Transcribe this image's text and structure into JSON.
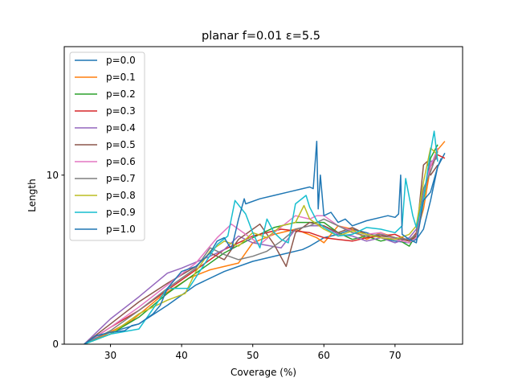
{
  "chart_data": {
    "type": "line",
    "title": "planar f=0.01 ε=5.5",
    "xlabel": "Coverage (%)",
    "ylabel": "Length",
    "xlim": [
      23.5,
      79.5
    ],
    "ylim": [
      0,
      17.6
    ],
    "x_ticks": [
      30,
      40,
      50,
      60,
      70
    ],
    "y_ticks": [
      0,
      10
    ],
    "grid": false,
    "legend_position": "top-left",
    "series": [
      {
        "name": "p=0.0",
        "color": "#1f77b4",
        "points": [
          [
            26.3,
            0
          ],
          [
            28,
            0.5
          ],
          [
            30,
            0.7
          ],
          [
            34,
            1.2
          ],
          [
            38,
            2.3
          ],
          [
            42,
            3.5
          ],
          [
            46,
            4.3
          ],
          [
            50,
            4.9
          ],
          [
            54,
            5.3
          ],
          [
            57,
            5.6
          ],
          [
            58,
            5.8
          ],
          [
            60,
            6.3
          ],
          [
            62,
            6.5
          ],
          [
            64,
            6.8
          ],
          [
            66,
            6.6
          ],
          [
            68,
            6.3
          ],
          [
            70,
            6.1
          ],
          [
            72,
            6.0
          ],
          [
            73,
            6.2
          ],
          [
            74,
            6.8
          ],
          [
            75,
            8.5
          ],
          [
            76,
            10.5
          ],
          [
            77,
            11.3
          ]
        ]
      },
      {
        "name": "p=0.1",
        "color": "#ff7f0e",
        "points": [
          [
            26.3,
            0
          ],
          [
            29,
            0.5
          ],
          [
            33,
            1.4
          ],
          [
            37,
            2.8
          ],
          [
            41,
            3.9
          ],
          [
            44,
            4.4
          ],
          [
            48,
            4.8
          ],
          [
            50,
            6.0
          ],
          [
            53,
            6.5
          ],
          [
            56,
            6.8
          ],
          [
            59,
            6.3
          ],
          [
            60,
            6.0
          ],
          [
            62,
            7.0
          ],
          [
            64,
            6.8
          ],
          [
            66,
            6.2
          ],
          [
            68,
            6.6
          ],
          [
            70,
            6.3
          ],
          [
            72,
            6.1
          ],
          [
            73,
            6.5
          ],
          [
            74,
            8.0
          ],
          [
            75,
            10.5
          ],
          [
            76,
            11.5
          ],
          [
            77,
            12.0
          ]
        ]
      },
      {
        "name": "p=0.2",
        "color": "#2ca02c",
        "points": [
          [
            26.3,
            0
          ],
          [
            30,
            0.6
          ],
          [
            34,
            1.6
          ],
          [
            38,
            3.0
          ],
          [
            42,
            4.2
          ],
          [
            46,
            5.4
          ],
          [
            50,
            6.3
          ],
          [
            53,
            6.9
          ],
          [
            56,
            7.2
          ],
          [
            60,
            7.2
          ],
          [
            62,
            6.6
          ],
          [
            64,
            6.2
          ],
          [
            66,
            6.4
          ],
          [
            68,
            6.1
          ],
          [
            70,
            6.3
          ],
          [
            72,
            5.8
          ],
          [
            73,
            6.5
          ],
          [
            74,
            8.5
          ],
          [
            75,
            11.0
          ],
          [
            76,
            11.8
          ]
        ]
      },
      {
        "name": "p=0.3",
        "color": "#d62728",
        "points": [
          [
            26.3,
            0
          ],
          [
            30,
            1.0
          ],
          [
            34,
            2.0
          ],
          [
            38,
            3.2
          ],
          [
            42,
            4.4
          ],
          [
            46,
            5.6
          ],
          [
            50,
            6.4
          ],
          [
            54,
            6.8
          ],
          [
            58,
            6.6
          ],
          [
            60,
            6.3
          ],
          [
            62,
            6.2
          ],
          [
            64,
            6.1
          ],
          [
            66,
            6.3
          ],
          [
            68,
            6.4
          ],
          [
            70,
            6.5
          ],
          [
            72,
            6.1
          ],
          [
            73,
            6.6
          ],
          [
            74,
            8.8
          ],
          [
            75,
            10.5
          ],
          [
            76,
            11.2
          ],
          [
            77,
            11.0
          ]
        ]
      },
      {
        "name": "p=0.4",
        "color": "#9467bd",
        "points": [
          [
            26.3,
            0
          ],
          [
            30,
            1.5
          ],
          [
            34,
            2.8
          ],
          [
            38,
            4.2
          ],
          [
            40,
            4.5
          ],
          [
            44,
            5.2
          ],
          [
            46,
            5.6
          ],
          [
            48,
            6.4
          ],
          [
            50,
            6.0
          ],
          [
            54,
            5.7
          ],
          [
            56,
            6.8
          ],
          [
            58,
            7.0
          ],
          [
            60,
            7.0
          ],
          [
            62,
            6.5
          ],
          [
            64,
            6.4
          ],
          [
            66,
            6.1
          ],
          [
            68,
            6.3
          ],
          [
            70,
            6.0
          ],
          [
            72,
            6.3
          ],
          [
            73,
            6.8
          ],
          [
            74,
            8.8
          ],
          [
            75,
            10.8
          ],
          [
            76,
            11.0
          ]
        ]
      },
      {
        "name": "p=0.5",
        "color": "#8c564b",
        "points": [
          [
            26.3,
            0
          ],
          [
            30,
            1.2
          ],
          [
            34,
            2.5
          ],
          [
            38,
            3.6
          ],
          [
            42,
            4.6
          ],
          [
            44,
            5.4
          ],
          [
            46,
            5.0
          ],
          [
            48,
            6.2
          ],
          [
            50,
            6.8
          ],
          [
            51,
            7.1
          ],
          [
            53,
            5.9
          ],
          [
            54.7,
            4.6
          ],
          [
            56,
            6.6
          ],
          [
            58,
            7.2
          ],
          [
            60,
            7.0
          ],
          [
            62,
            6.6
          ],
          [
            64,
            6.9
          ],
          [
            66,
            6.5
          ],
          [
            68,
            6.4
          ],
          [
            70,
            6.3
          ],
          [
            72,
            6.1
          ],
          [
            73,
            6.4
          ],
          [
            74,
            10.6
          ],
          [
            74.5,
            10.8
          ],
          [
            75,
            10.0
          ],
          [
            76,
            10.6
          ]
        ]
      },
      {
        "name": "p=0.6",
        "color": "#e377c2",
        "points": [
          [
            26.3,
            0
          ],
          [
            30,
            1.0
          ],
          [
            34,
            2.2
          ],
          [
            38,
            3.5
          ],
          [
            42,
            4.8
          ],
          [
            45,
            6.3
          ],
          [
            47,
            7.1
          ],
          [
            49,
            6.5
          ],
          [
            51,
            5.9
          ],
          [
            53,
            6.6
          ],
          [
            56,
            7.6
          ],
          [
            58,
            7.4
          ],
          [
            59,
            7.6
          ],
          [
            60,
            7.6
          ],
          [
            62,
            7.0
          ],
          [
            64,
            6.7
          ],
          [
            66,
            6.5
          ],
          [
            68,
            6.6
          ],
          [
            70,
            6.2
          ],
          [
            72,
            6.0
          ],
          [
            73,
            6.3
          ],
          [
            74,
            9.0
          ],
          [
            75,
            10.5
          ],
          [
            76,
            11.6
          ]
        ]
      },
      {
        "name": "p=0.7",
        "color": "#7f7f7f",
        "points": [
          [
            26.3,
            0
          ],
          [
            30,
            0.8
          ],
          [
            34,
            2.0
          ],
          [
            38,
            3.3
          ],
          [
            42,
            4.5
          ],
          [
            44,
            5.7
          ],
          [
            46,
            5.3
          ],
          [
            48,
            5.0
          ],
          [
            50,
            5.2
          ],
          [
            52,
            5.5
          ],
          [
            54,
            6.1
          ],
          [
            56,
            6.8
          ],
          [
            58,
            7.0
          ],
          [
            60,
            7.4
          ],
          [
            62,
            7.0
          ],
          [
            64,
            6.6
          ],
          [
            66,
            6.4
          ],
          [
            68,
            6.5
          ],
          [
            70,
            6.3
          ],
          [
            72,
            6.2
          ],
          [
            73,
            6.5
          ],
          [
            74,
            9.2
          ],
          [
            75,
            10.2
          ],
          [
            76,
            11.4
          ]
        ]
      },
      {
        "name": "p=0.8",
        "color": "#bcbd22",
        "points": [
          [
            26.3,
            0
          ],
          [
            30,
            0.6
          ],
          [
            34,
            1.8
          ],
          [
            38,
            2.6
          ],
          [
            40.5,
            3.0
          ],
          [
            42,
            4.3
          ],
          [
            44,
            5.5
          ],
          [
            46,
            6.1
          ],
          [
            48,
            5.8
          ],
          [
            50,
            6.6
          ],
          [
            52,
            6.3
          ],
          [
            54,
            7.0
          ],
          [
            56,
            7.2
          ],
          [
            57.2,
            8.2
          ],
          [
            58,
            7.4
          ],
          [
            60,
            6.8
          ],
          [
            62,
            6.4
          ],
          [
            64,
            6.7
          ],
          [
            66,
            6.5
          ],
          [
            68,
            6.3
          ],
          [
            70,
            6.2
          ],
          [
            72,
            6.5
          ],
          [
            73,
            7.0
          ],
          [
            74,
            9.6
          ],
          [
            75,
            11.6
          ],
          [
            76,
            11.2
          ]
        ]
      },
      {
        "name": "p=0.9",
        "color": "#17becf",
        "points": [
          [
            26.3,
            0
          ],
          [
            30,
            0.6
          ],
          [
            34,
            0.9
          ],
          [
            38,
            3.3
          ],
          [
            41,
            3.3
          ],
          [
            43,
            4.6
          ],
          [
            45,
            5.9
          ],
          [
            46.5,
            6.4
          ],
          [
            47.5,
            8.5
          ],
          [
            49,
            7.7
          ],
          [
            50,
            6.6
          ],
          [
            51,
            5.7
          ],
          [
            52,
            7.4
          ],
          [
            53,
            6.6
          ],
          [
            54,
            6.2
          ],
          [
            55,
            6.0
          ],
          [
            56,
            8.3
          ],
          [
            57.5,
            8.8
          ],
          [
            58,
            8.1
          ],
          [
            59,
            7.3
          ],
          [
            60,
            6.9
          ],
          [
            62,
            6.4
          ],
          [
            64,
            6.5
          ],
          [
            66,
            6.9
          ],
          [
            68,
            6.8
          ],
          [
            70,
            6.6
          ],
          [
            71,
            7.0
          ],
          [
            71.5,
            9.8
          ],
          [
            72.5,
            7.6
          ],
          [
            73,
            6.9
          ],
          [
            74,
            8.6
          ],
          [
            75,
            11.4
          ],
          [
            75.5,
            12.6
          ],
          [
            76,
            10.8
          ]
        ]
      },
      {
        "name": "p=1.0",
        "color": "#1f77b4",
        "points": [
          [
            26.3,
            0
          ],
          [
            28,
            0.5
          ],
          [
            30,
            0.7
          ],
          [
            32,
            0.8
          ],
          [
            33,
            1.1
          ],
          [
            34,
            1.2
          ],
          [
            36,
            1.8
          ],
          [
            37,
            2.3
          ],
          [
            38,
            3.3
          ],
          [
            40,
            4.3
          ],
          [
            42,
            4.6
          ],
          [
            44,
            5.4
          ],
          [
            45,
            6.1
          ],
          [
            46,
            6.3
          ],
          [
            47,
            5.6
          ],
          [
            48,
            7.4
          ],
          [
            48.8,
            8.6
          ],
          [
            49,
            8.3
          ],
          [
            51,
            8.6
          ],
          [
            53,
            8.8
          ],
          [
            55,
            9.0
          ],
          [
            57,
            9.2
          ],
          [
            58,
            9.3
          ],
          [
            58.5,
            9.2
          ],
          [
            59,
            12.0
          ],
          [
            59.2,
            8.0
          ],
          [
            59.5,
            10.0
          ],
          [
            60,
            7.6
          ],
          [
            61,
            7.8
          ],
          [
            62,
            7.2
          ],
          [
            63,
            7.4
          ],
          [
            64,
            7.0
          ],
          [
            66,
            7.3
          ],
          [
            68,
            7.5
          ],
          [
            69,
            7.6
          ],
          [
            70,
            7.5
          ],
          [
            70.5,
            7.7
          ],
          [
            70.8,
            10.0
          ],
          [
            71,
            6.5
          ],
          [
            72,
            6.2
          ],
          [
            73,
            6.0
          ],
          [
            73.5,
            7.2
          ],
          [
            74,
            8.5
          ],
          [
            75,
            9.0
          ],
          [
            76,
            10.5
          ],
          [
            76.5,
            11.0
          ]
        ]
      }
    ]
  }
}
